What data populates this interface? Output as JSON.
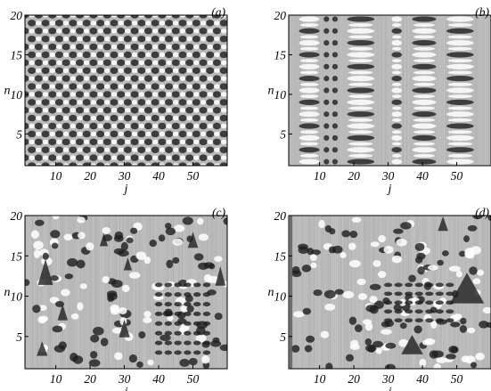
{
  "chart_data": [
    {
      "type": "heatmap",
      "panel_label": "(a)",
      "xlabel": "j",
      "ylabel": "n",
      "xlim": [
        1,
        60
      ],
      "ylim": [
        1,
        20
      ],
      "xticks": [
        "10",
        "20",
        "30",
        "40",
        "50"
      ],
      "yticks": [
        "5",
        "10",
        "15",
        "20"
      ],
      "pattern": "regular-checkerboard"
    },
    {
      "type": "heatmap",
      "panel_label": "(b)",
      "xlabel": "j",
      "ylabel": "n",
      "xlim": [
        1,
        60
      ],
      "ylim": [
        1,
        20
      ],
      "xticks": [
        "10",
        "20",
        "30",
        "40",
        "50"
      ],
      "yticks": [
        "5",
        "10",
        "15",
        "20"
      ],
      "pattern": "horizontal-bands"
    },
    {
      "type": "heatmap",
      "panel_label": "(c)",
      "xlabel": "j",
      "ylabel": "n",
      "xlim": [
        1,
        60
      ],
      "ylim": [
        1,
        20
      ],
      "xticks": [
        "10",
        "20",
        "30",
        "40",
        "50"
      ],
      "yticks": [
        "5",
        "10",
        "15",
        "20"
      ],
      "pattern": "disordered-triangles"
    },
    {
      "type": "heatmap",
      "panel_label": "(d)",
      "xlabel": "j",
      "ylabel": "n",
      "xlim": [
        1,
        60
      ],
      "ylim": [
        1,
        20
      ],
      "xticks": [
        "10",
        "20",
        "30",
        "40",
        "50"
      ],
      "yticks": [
        "5",
        "10",
        "15",
        "20"
      ],
      "pattern": "disordered-large-triangles"
    }
  ]
}
